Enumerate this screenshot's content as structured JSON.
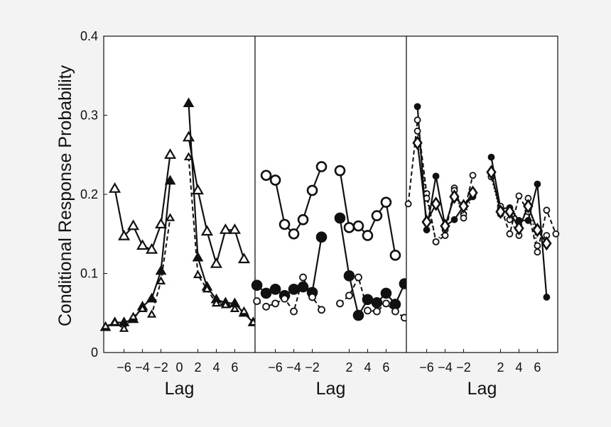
{
  "chart_data": [
    {
      "type": "line",
      "panel": 1,
      "xlabel": "Lag",
      "ylabel": "Conditional Response Probability",
      "ylim": [
        0,
        0.4
      ],
      "y_ticks": [
        0,
        0.1,
        0.2,
        0.3,
        0.4
      ],
      "y_tick_labels": [
        "0",
        "0.1",
        "0.2",
        "0.3",
        "0.4"
      ],
      "xlim": [
        -8.2,
        8.2
      ],
      "x_ticks": [
        -6,
        -4,
        -2,
        2,
        4,
        6
      ],
      "x_tick_labels": [
        "−6",
        "−4",
        "−2",
        "2",
        "4",
        "6"
      ],
      "extra_x_tick_labels": [
        {
          "x": 0,
          "label": "0"
        }
      ],
      "grid": false,
      "series": [
        {
          "marker": "triangle-open",
          "line": "solid",
          "marker_size": 14,
          "x": [
            -7,
            -6,
            -5,
            -4,
            -3,
            -2,
            -1,
            1,
            2,
            3,
            4,
            5,
            6,
            7
          ],
          "y": [
            0.207,
            0.147,
            0.16,
            0.135,
            0.13,
            0.162,
            0.25,
            0.272,
            0.205,
            0.153,
            0.112,
            0.155,
            0.155,
            0.118
          ]
        },
        {
          "marker": "triangle-filled",
          "line": "solid",
          "marker_size": 14,
          "x": [
            -8,
            -7,
            -6,
            -5,
            -4,
            -3,
            -2,
            -1,
            1,
            2,
            3,
            4,
            5,
            6,
            7,
            8
          ],
          "y": [
            0.032,
            0.038,
            0.038,
            0.042,
            0.058,
            0.068,
            0.103,
            0.217,
            0.315,
            0.12,
            0.083,
            0.067,
            0.063,
            0.062,
            0.05,
            0.038
          ]
        },
        {
          "marker": "triangle-open",
          "line": "dashed",
          "marker_size": 10,
          "x": [
            -8,
            -7,
            -6,
            -5,
            -4,
            -3,
            -2,
            -1,
            1,
            2,
            3,
            4,
            5,
            6,
            7,
            8
          ],
          "y": [
            0.033,
            0.038,
            0.03,
            0.045,
            0.055,
            0.048,
            0.09,
            0.17,
            0.247,
            0.098,
            0.08,
            0.062,
            0.06,
            0.055,
            0.052,
            0.038
          ]
        }
      ]
    },
    {
      "type": "line",
      "panel": 2,
      "xlabel": "Lag",
      "ylim": [
        0,
        0.4
      ],
      "xlim": [
        -8.2,
        8.2
      ],
      "x_ticks": [
        -6,
        -4,
        -2,
        2,
        4,
        6
      ],
      "x_tick_labels": [
        "−6",
        "−4",
        "−2",
        "2",
        "4",
        "6"
      ],
      "grid": false,
      "series": [
        {
          "marker": "circle-open",
          "line": "solid",
          "marker_size": 13,
          "x": [
            -7,
            -6,
            -5,
            -4,
            -3,
            -2,
            -1,
            1,
            2,
            3,
            4,
            5,
            6,
            7
          ],
          "y": [
            0.224,
            0.218,
            0.162,
            0.15,
            0.168,
            0.205,
            0.235,
            0.23,
            0.158,
            0.16,
            0.148,
            0.173,
            0.19,
            0.123
          ]
        },
        {
          "marker": "circle-filled",
          "line": "solid",
          "marker_size": 13,
          "x": [
            -8,
            -7,
            -6,
            -5,
            -4,
            -3,
            -2,
            -1,
            1,
            2,
            3,
            4,
            5,
            6,
            7,
            8
          ],
          "y": [
            0.085,
            0.075,
            0.08,
            0.072,
            0.08,
            0.083,
            0.076,
            0.146,
            0.17,
            0.097,
            0.047,
            0.067,
            0.063,
            0.075,
            0.061,
            0.087
          ]
        },
        {
          "marker": "circle-open",
          "line": "dashed",
          "marker_size": 9,
          "x": [
            -8,
            -7,
            -6,
            -5,
            -4,
            -3,
            -2,
            -1,
            1,
            2,
            3,
            4,
            5,
            6,
            7,
            8
          ],
          "y": [
            0.065,
            0.058,
            0.062,
            0.068,
            0.052,
            0.095,
            0.07,
            0.054,
            0.062,
            0.072,
            0.095,
            0.053,
            0.052,
            0.062,
            0.052,
            0.044
          ]
        }
      ]
    },
    {
      "type": "line",
      "panel": 3,
      "xlabel": "Lag",
      "ylim": [
        0,
        0.4
      ],
      "xlim": [
        -8.2,
        8.2
      ],
      "x_ticks": [
        -6,
        -4,
        -2,
        2,
        4,
        6
      ],
      "x_tick_labels": [
        "−6",
        "−4",
        "−2",
        "2",
        "4",
        "6"
      ],
      "grid": false,
      "series": [
        {
          "marker": "circle-filled",
          "line": "solid",
          "marker_size": 8,
          "x": [
            -7,
            -6,
            -5,
            -4,
            -3,
            -2,
            -1,
            1,
            2,
            3,
            4,
            5,
            6,
            7
          ],
          "y": [
            0.311,
            0.155,
            0.223,
            0.16,
            0.168,
            0.185,
            0.197,
            0.247,
            0.182,
            0.183,
            0.167,
            0.167,
            0.213,
            0.07
          ]
        },
        {
          "marker": "circle-open",
          "line": "dashed",
          "marker_size": 8,
          "x": [
            -8,
            -7,
            -6,
            -5,
            -4,
            -3,
            -2,
            -1,
            1,
            2,
            3,
            4,
            5,
            6,
            7,
            8
          ],
          "y": [
            0.188,
            0.294,
            0.201,
            0.14,
            0.148,
            0.208,
            0.175,
            0.224,
            0.223,
            0.185,
            0.15,
            0.198,
            0.178,
            0.127,
            0.18,
            0.15
          ]
        },
        {
          "marker": "circle-open",
          "line": "dotted",
          "marker_size": 8,
          "x": [
            -7,
            -6,
            -5,
            -4,
            -3,
            -2,
            -1,
            1,
            2,
            3,
            4,
            5,
            6,
            7
          ],
          "y": [
            0.28,
            0.195,
            0.14,
            0.155,
            0.205,
            0.17,
            0.2,
            0.222,
            0.175,
            0.168,
            0.148,
            0.195,
            0.135,
            0.148
          ]
        },
        {
          "marker": "diamond-open",
          "line": "solid",
          "marker_size": 16,
          "x": [
            -7,
            -6,
            -5,
            -4,
            -3,
            -2,
            -1,
            1,
            2,
            3,
            4,
            5,
            6,
            7
          ],
          "y": [
            0.265,
            0.165,
            0.188,
            0.16,
            0.197,
            0.185,
            0.202,
            0.228,
            0.178,
            0.178,
            0.157,
            0.185,
            0.155,
            0.138
          ]
        }
      ]
    }
  ]
}
